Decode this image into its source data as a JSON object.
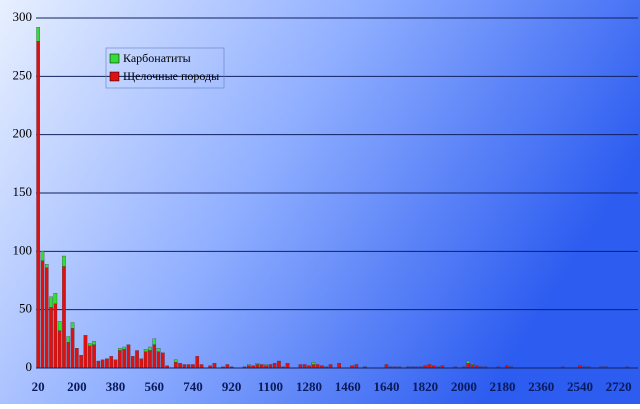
{
  "chart_data": {
    "type": "stacked_bar",
    "categories": [
      "20",
      null,
      null,
      null,
      null,
      null,
      null,
      null,
      null,
      "200",
      null,
      null,
      null,
      null,
      null,
      null,
      null,
      null,
      "380",
      null,
      null,
      null,
      null,
      null,
      null,
      null,
      null,
      "560",
      null,
      null,
      null,
      null,
      null,
      null,
      null,
      null,
      "740",
      null,
      null,
      null,
      null,
      null,
      null,
      null,
      null,
      "920",
      null,
      null,
      null,
      null,
      null,
      null,
      null,
      null,
      "1100",
      null,
      null,
      null,
      null,
      null,
      null,
      null,
      null,
      "1280",
      null,
      null,
      null,
      null,
      null,
      null,
      null,
      null,
      "1460",
      null,
      null,
      null,
      null,
      null,
      null,
      null,
      null,
      "1640",
      null,
      null,
      null,
      null,
      null,
      null,
      null,
      null,
      "1820",
      null,
      null,
      null,
      null,
      null,
      null,
      null,
      null,
      "2000",
      null,
      null,
      null,
      null,
      null,
      null,
      null,
      null,
      "2180",
      null,
      null,
      null,
      null,
      null,
      null,
      null,
      null,
      "2360",
      null,
      null,
      null,
      null,
      null,
      null,
      null,
      null,
      "2540",
      null,
      null,
      null,
      null,
      null,
      null,
      null,
      null,
      "2720",
      null,
      null,
      null,
      null
    ],
    "series": [
      {
        "name": "Щелочные породы",
        "color": "#e01010",
        "values": [
          280,
          92,
          86,
          52,
          55,
          32,
          87,
          22,
          34,
          17,
          11,
          28,
          19,
          20,
          6,
          7,
          8,
          10,
          7,
          15,
          16,
          20,
          10,
          15,
          8,
          14,
          15,
          20,
          14,
          13,
          2,
          0,
          5,
          4,
          3,
          3,
          3,
          10,
          3,
          0,
          2,
          4,
          0,
          1,
          3,
          1,
          0,
          0,
          1,
          2,
          2,
          3,
          3,
          2,
          3,
          4,
          6,
          1,
          4,
          0,
          0,
          3,
          3,
          2,
          3,
          3,
          2,
          1,
          3,
          0,
          4,
          0,
          0,
          2,
          3,
          0,
          1,
          0,
          0,
          0,
          0,
          3,
          1,
          1,
          1,
          0,
          1,
          1,
          1,
          1,
          2,
          3,
          2,
          1,
          2,
          0,
          0,
          1,
          0,
          1,
          4,
          3,
          2,
          1,
          1,
          0,
          0,
          1,
          0,
          2,
          1,
          0,
          0,
          0,
          0,
          0,
          0,
          0,
          0,
          0,
          0,
          0,
          1,
          0,
          0,
          0,
          2,
          1,
          1,
          0,
          0,
          1,
          1,
          0,
          0,
          0,
          0,
          1,
          0,
          0
        ]
      },
      {
        "name": "Карбонатиты",
        "color": "#33dd33",
        "values": [
          12,
          8,
          3,
          9,
          9,
          8,
          9,
          5,
          5,
          0,
          0,
          0,
          2,
          3,
          0,
          0,
          0,
          0,
          0,
          2,
          2,
          0,
          0,
          0,
          0,
          2,
          3,
          5,
          3,
          0,
          0,
          0,
          2,
          0,
          0,
          0,
          0,
          0,
          0,
          0,
          0,
          0,
          0,
          0,
          0,
          0,
          0,
          0,
          0,
          1,
          0,
          1,
          0,
          1,
          0,
          0,
          0,
          0,
          0,
          0,
          0,
          0,
          0,
          0,
          2,
          0,
          0,
          0,
          0,
          0,
          0,
          0,
          0,
          0,
          0,
          0,
          0,
          0,
          0,
          0,
          0,
          0,
          0,
          0,
          0,
          0,
          0,
          0,
          0,
          0,
          0,
          0,
          0,
          0,
          0,
          0,
          0,
          0,
          0,
          0,
          2,
          1,
          0,
          0,
          0,
          0,
          0,
          0,
          0,
          0,
          0,
          0,
          0,
          0,
          0,
          0,
          0,
          0,
          0,
          0,
          0,
          0,
          0,
          0,
          0,
          0,
          0,
          0,
          0,
          0,
          0,
          0,
          0,
          0,
          0,
          0,
          0,
          0,
          0,
          0
        ]
      }
    ],
    "ylim": [
      0,
      300
    ],
    "yticks": [
      0,
      50,
      100,
      150,
      200,
      250,
      300
    ],
    "grid": true
  }
}
